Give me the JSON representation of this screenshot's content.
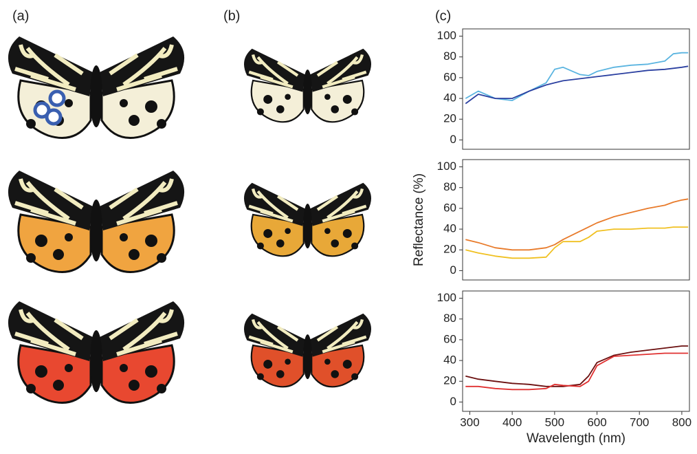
{
  "panel_labels": [
    "(a)",
    "(b)",
    "(c)"
  ],
  "chart_data": [
    {
      "type": "line",
      "x": [
        290,
        320,
        360,
        400,
        440,
        480,
        500,
        520,
        560,
        580,
        600,
        640,
        680,
        720,
        760,
        780,
        800,
        815
      ],
      "xlim": [
        283,
        818
      ],
      "ylim": [
        -9,
        107
      ],
      "yticks": [
        0,
        20,
        40,
        60,
        80,
        100
      ],
      "series": [
        {
          "color": "#5ab4e0",
          "values": [
            40,
            47,
            40,
            38,
            47,
            55,
            68,
            70,
            63,
            62,
            66,
            70,
            72,
            73,
            76,
            83,
            84,
            84
          ]
        },
        {
          "color": "#2a3fa0",
          "values": [
            35,
            44,
            40,
            40,
            47,
            53,
            55,
            57,
            59,
            60,
            61,
            63,
            65,
            67,
            68,
            69,
            70,
            71
          ]
        }
      ]
    },
    {
      "type": "line",
      "x": [
        290,
        320,
        360,
        400,
        440,
        480,
        500,
        520,
        560,
        580,
        600,
        640,
        680,
        720,
        760,
        780,
        800,
        815
      ],
      "xlim": [
        283,
        818
      ],
      "ylim": [
        -9,
        107
      ],
      "yticks": [
        0,
        20,
        40,
        60,
        80,
        100
      ],
      "ylabel": "Reflectance (%)",
      "series": [
        {
          "color": "#e87a2a",
          "values": [
            30,
            27,
            22,
            20,
            20,
            22,
            25,
            30,
            38,
            42,
            46,
            52,
            56,
            60,
            63,
            66,
            68,
            69
          ]
        },
        {
          "color": "#f0c020",
          "values": [
            20,
            17,
            14,
            12,
            12,
            13,
            22,
            28,
            28,
            32,
            38,
            40,
            40,
            41,
            41,
            42,
            42,
            42
          ]
        }
      ]
    },
    {
      "type": "line",
      "x": [
        290,
        320,
        360,
        400,
        440,
        480,
        500,
        520,
        560,
        580,
        600,
        640,
        680,
        720,
        760,
        780,
        800,
        815
      ],
      "xlim": [
        283,
        818
      ],
      "ylim": [
        -9,
        107
      ],
      "yticks": [
        0,
        20,
        40,
        60,
        80,
        100
      ],
      "xticks": [
        300,
        400,
        500,
        600,
        700,
        800
      ],
      "xlabel": "Wavelength (nm)",
      "series": [
        {
          "color": "#6b0f0f",
          "values": [
            25,
            22,
            20,
            18,
            17,
            15,
            15,
            15,
            17,
            25,
            38,
            45,
            48,
            50,
            52,
            53,
            54,
            54
          ]
        },
        {
          "color": "#e03030",
          "values": [
            15,
            15,
            13,
            12,
            12,
            13,
            17,
            16,
            15,
            20,
            35,
            44,
            45,
            46,
            47,
            47,
            47,
            47
          ]
        }
      ]
    }
  ]
}
